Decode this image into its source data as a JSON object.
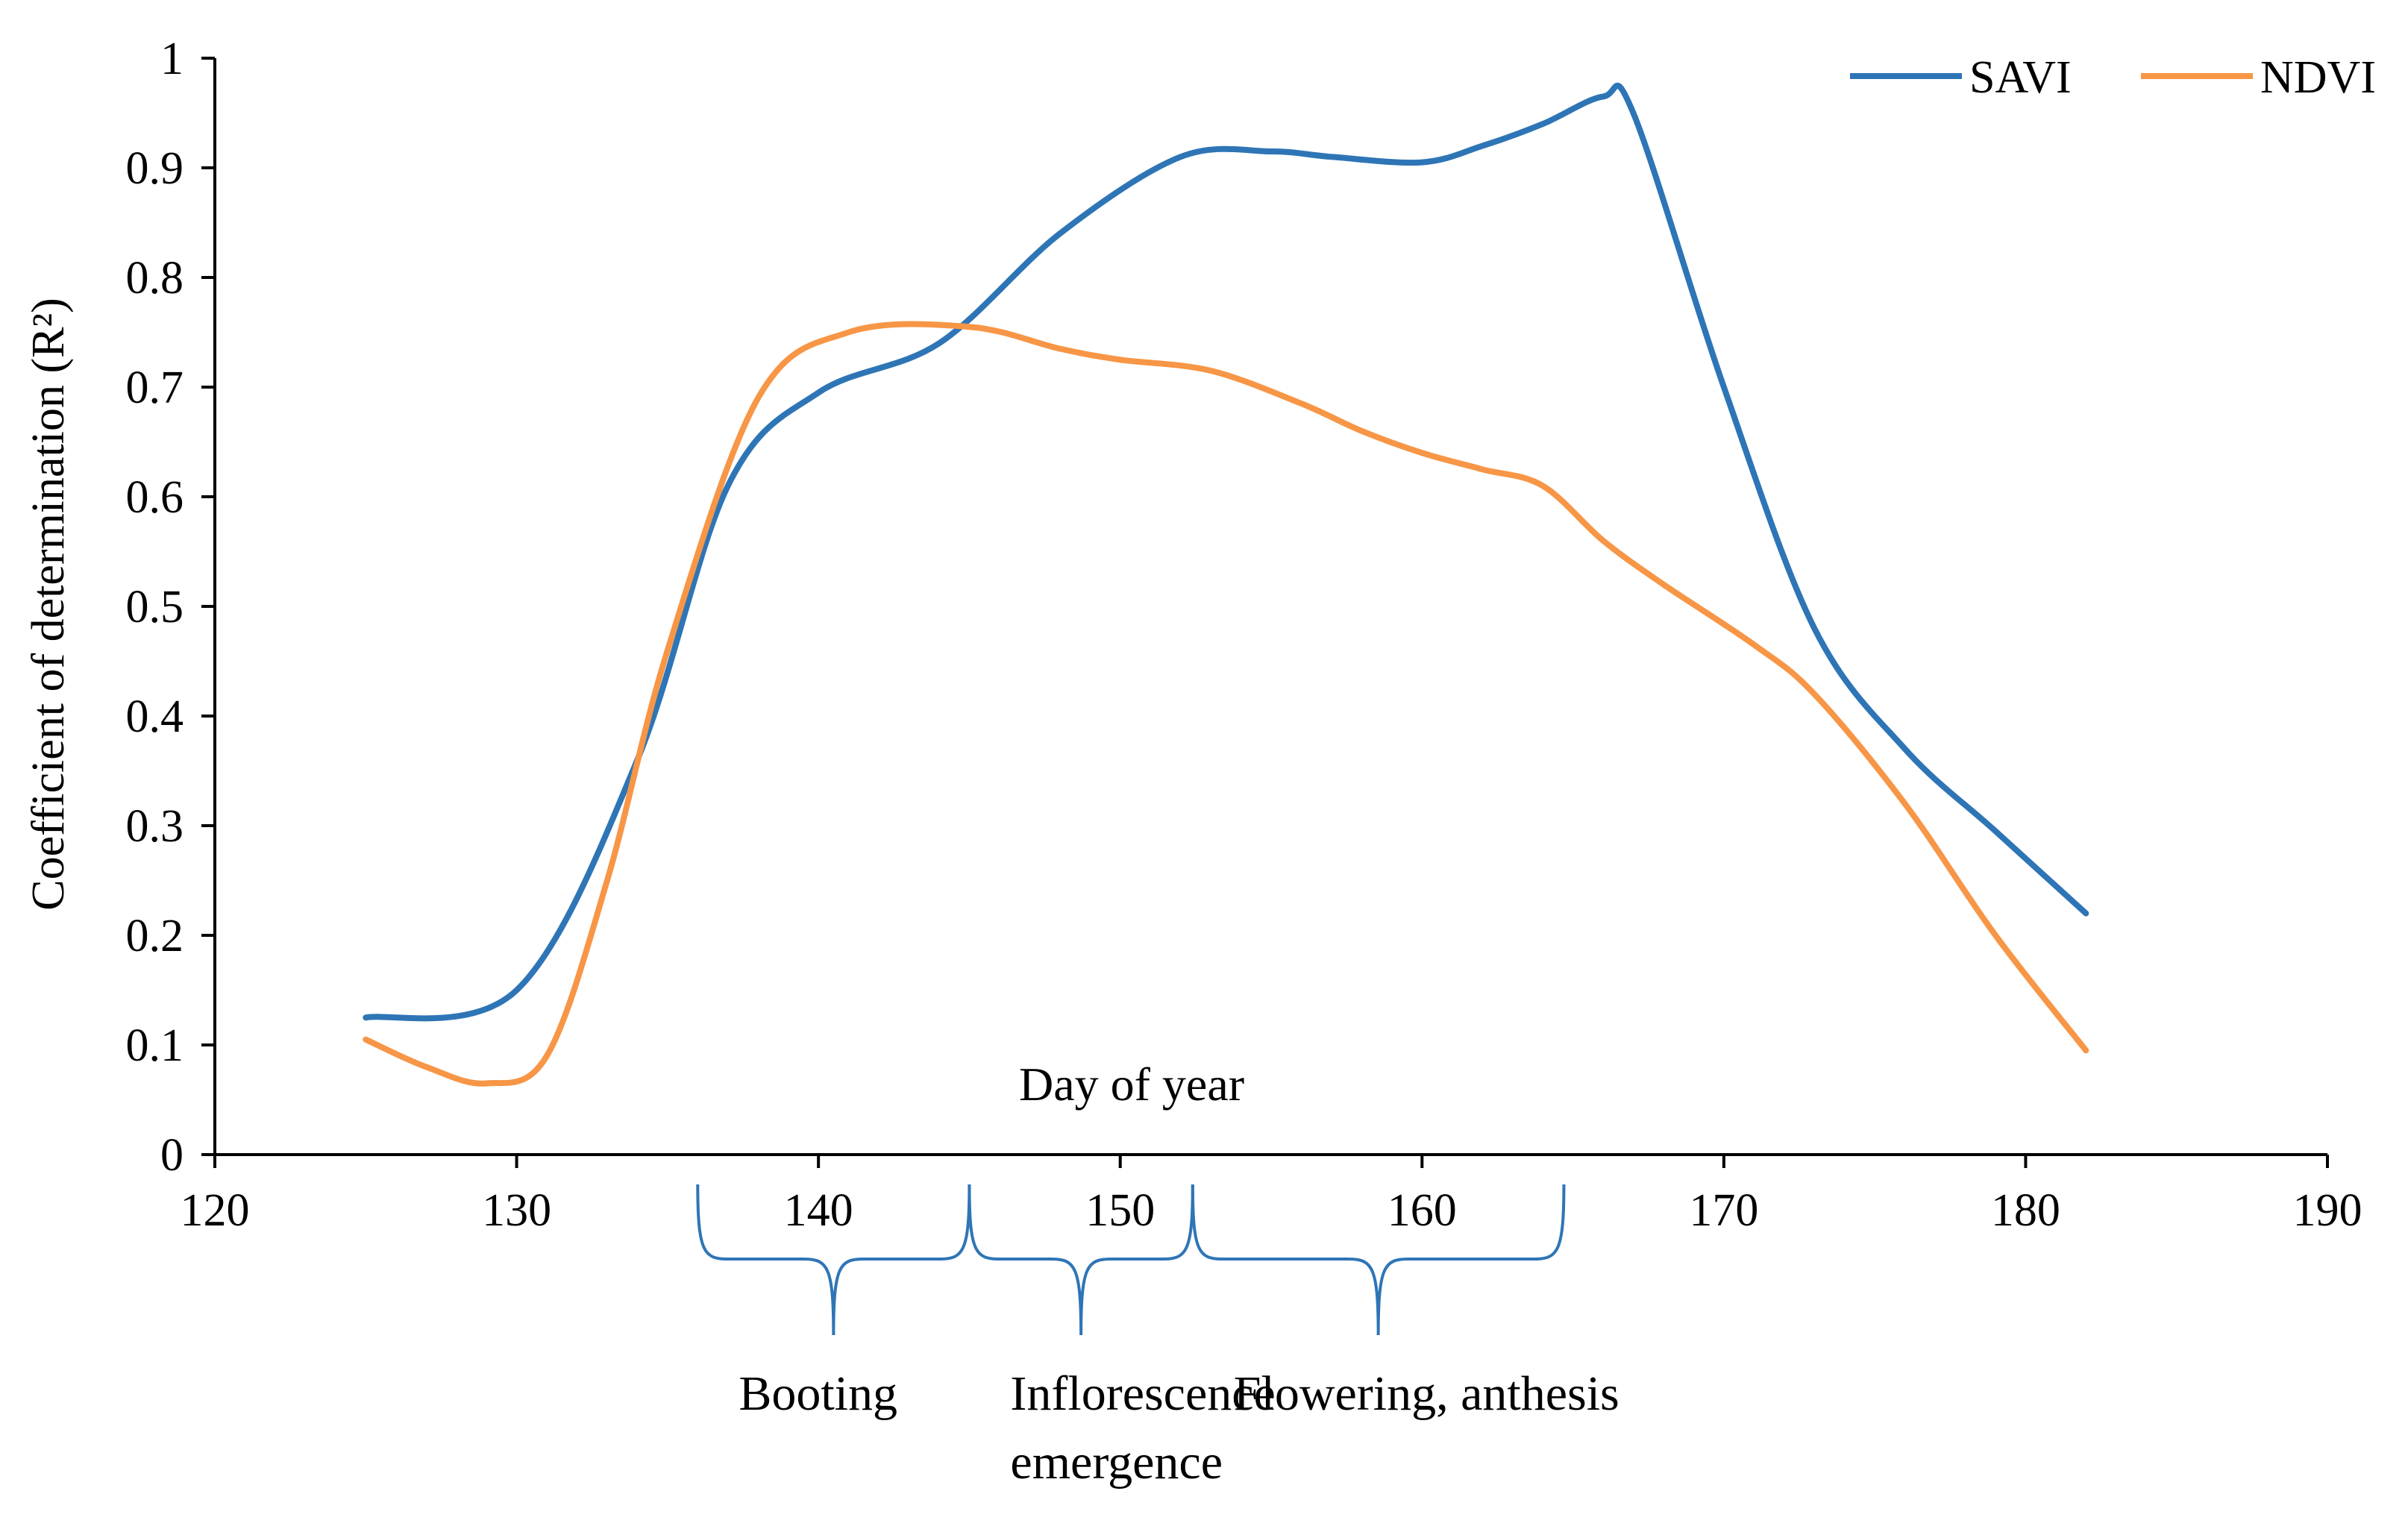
{
  "chart_data": {
    "type": "line",
    "xlabel": "Day of year",
    "ylabel": "Coefficient of determination (R²)",
    "xlim": [
      120,
      190
    ],
    "ylim": [
      0,
      1
    ],
    "x_ticks": [
      "120",
      "130",
      "140",
      "150",
      "160",
      "170",
      "180",
      "190"
    ],
    "y_ticks": [
      "0",
      "0.1",
      "0.2",
      "0.3",
      "0.4",
      "0.5",
      "0.6",
      "0.7",
      "0.8",
      "0.9",
      "1"
    ],
    "grid": false,
    "legend_position": "top-right",
    "series": [
      {
        "name": "SAVI",
        "color": "#2E75B6",
        "x": [
          125,
          130,
          134,
          137,
          140,
          144,
          148,
          152,
          155,
          157,
          160,
          162,
          164,
          166,
          167,
          170,
          173,
          176,
          179,
          182
        ],
        "y": [
          0.125,
          0.15,
          0.36,
          0.61,
          0.695,
          0.74,
          0.84,
          0.91,
          0.915,
          0.91,
          0.905,
          0.92,
          0.94,
          0.965,
          0.95,
          0.7,
          0.48,
          0.37,
          0.295,
          0.22
        ]
      },
      {
        "name": "NDVI",
        "color": "#F79646",
        "x": [
          125,
          127,
          129,
          131,
          133,
          135,
          138,
          141,
          145,
          148,
          150,
          153,
          156,
          158,
          160,
          162,
          164,
          166,
          168,
          171,
          173,
          176,
          179,
          182
        ],
        "y": [
          0.105,
          0.08,
          0.065,
          0.09,
          0.25,
          0.46,
          0.69,
          0.75,
          0.755,
          0.735,
          0.725,
          0.715,
          0.685,
          0.66,
          0.64,
          0.625,
          0.61,
          0.56,
          0.52,
          0.465,
          0.42,
          0.32,
          0.2,
          0.095
        ]
      }
    ],
    "annotations": [
      {
        "label": "Booting",
        "x_start": 136,
        "x_end": 145
      },
      {
        "label": "Inflorescence\nemergence",
        "x_start": 145,
        "x_end": 152.4
      },
      {
        "label": "Flowering, anthesis",
        "x_start": 152.4,
        "x_end": 164.7
      }
    ]
  }
}
